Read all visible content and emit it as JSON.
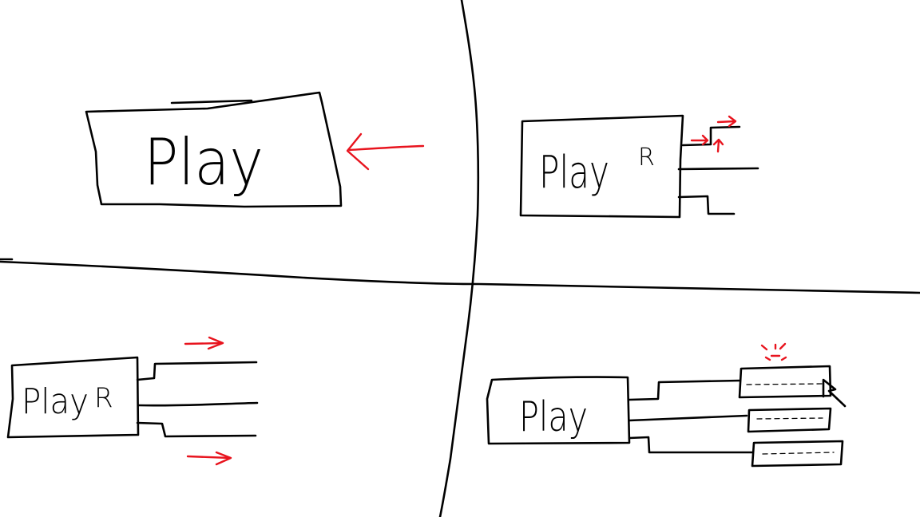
{
  "panels": {
    "top_left": {
      "button_label": "Play"
    },
    "top_right": {
      "button_label": "Play",
      "cursor_glyph": "R",
      "branch_count": 3
    },
    "bottom_left": {
      "button_label": "Play",
      "cursor_glyph": "R",
      "branch_count": 3
    },
    "bottom_right": {
      "button_label": "Play",
      "branch_count": 3,
      "option_count": 3
    }
  },
  "colors": {
    "ink": "#000000",
    "accent": "#e8141e",
    "background": "#ffffff"
  },
  "icons": [
    "arrow-left-icon",
    "arrow-right-icon",
    "arrow-up-icon",
    "cursor-icon",
    "sparkle-icon"
  ]
}
